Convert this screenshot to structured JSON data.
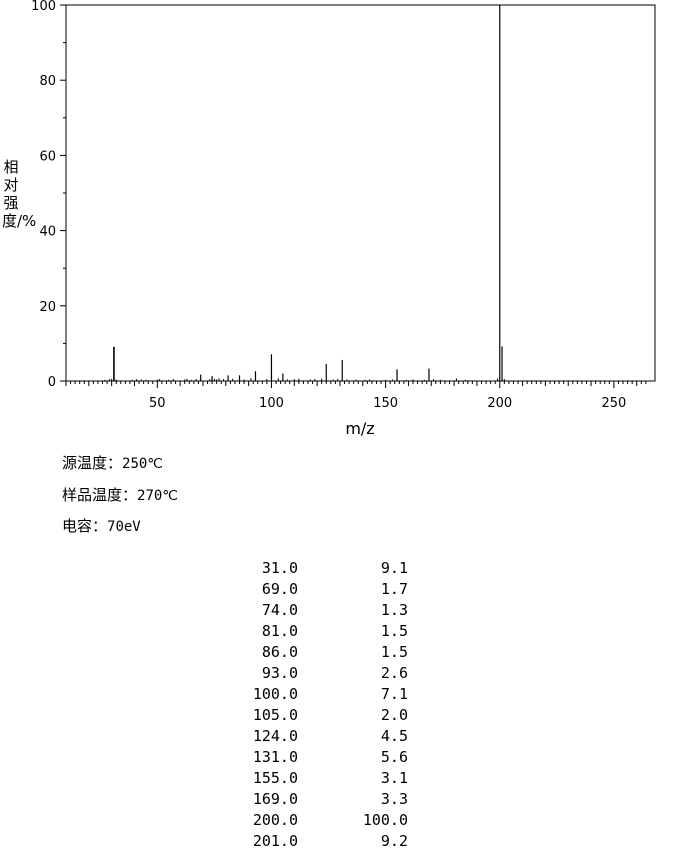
{
  "chart_data": {
    "type": "bar",
    "xlabel": "m/z",
    "ylabel": "相对强度/%",
    "xlim": [
      10,
      268
    ],
    "ylim": [
      0,
      100
    ],
    "x_ticks": [
      50,
      100,
      150,
      200,
      250
    ],
    "y_ticks": [
      0,
      20,
      40,
      60,
      80,
      100
    ],
    "grid": false,
    "x": [
      31,
      69,
      74,
      81,
      86,
      93,
      100,
      105,
      124,
      131,
      155,
      169,
      200,
      201
    ],
    "values": [
      9.1,
      1.7,
      1.3,
      1.5,
      1.5,
      2.6,
      7.1,
      2.0,
      4.5,
      5.6,
      3.1,
      3.3,
      100.0,
      9.2
    ],
    "minor_peaks": {
      "x": [
        27,
        29,
        30,
        32,
        39,
        41,
        43,
        45,
        50,
        51,
        55,
        57,
        62,
        63,
        65,
        67,
        73,
        75,
        76,
        77,
        79,
        83,
        88,
        91,
        98,
        103,
        107,
        110,
        112,
        117,
        119,
        122,
        127,
        129,
        133,
        137,
        141,
        143,
        150,
        153,
        159,
        162,
        167,
        171,
        174,
        181,
        185,
        199,
        202
      ],
      "values": [
        0.3,
        0.5,
        0.6,
        0.4,
        0.3,
        0.5,
        0.4,
        0.3,
        0.4,
        0.5,
        0.3,
        0.5,
        0.4,
        0.6,
        0.3,
        0.5,
        0.5,
        0.6,
        0.4,
        0.7,
        0.5,
        0.6,
        0.4,
        0.8,
        0.5,
        0.7,
        0.4,
        0.5,
        0.6,
        0.4,
        0.5,
        0.6,
        0.4,
        0.5,
        0.4,
        0.4,
        0.3,
        0.4,
        0.3,
        0.4,
        0.3,
        0.4,
        0.3,
        0.5,
        0.3,
        0.7,
        0.3,
        0.6,
        0.5
      ]
    }
  },
  "conditions": [
    {
      "label": "源温度：",
      "value": "250℃"
    },
    {
      "label": "样品温度：",
      "value": "270℃"
    },
    {
      "label": "电容：",
      "value": "70eV"
    }
  ],
  "peak_table": [
    {
      "mz": "31.0",
      "intensity": "9.1"
    },
    {
      "mz": "69.0",
      "intensity": "1.7"
    },
    {
      "mz": "74.0",
      "intensity": "1.3"
    },
    {
      "mz": "81.0",
      "intensity": "1.5"
    },
    {
      "mz": "86.0",
      "intensity": "1.5"
    },
    {
      "mz": "93.0",
      "intensity": "2.6"
    },
    {
      "mz": "100.0",
      "intensity": "7.1"
    },
    {
      "mz": "105.0",
      "intensity": "2.0"
    },
    {
      "mz": "124.0",
      "intensity": "4.5"
    },
    {
      "mz": "131.0",
      "intensity": "5.6"
    },
    {
      "mz": "155.0",
      "intensity": "3.1"
    },
    {
      "mz": "169.0",
      "intensity": "3.3"
    },
    {
      "mz": "200.0",
      "intensity": "100.0"
    },
    {
      "mz": "201.0",
      "intensity": "9.2"
    }
  ]
}
